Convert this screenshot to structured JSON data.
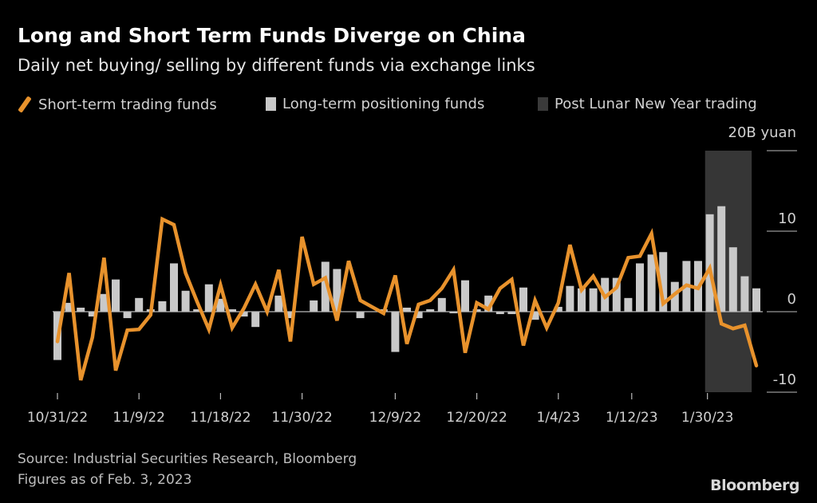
{
  "header": {
    "title": "Long and Short Term Funds Diverge on China",
    "subtitle": "Daily net buying/ selling by different funds via exchange links"
  },
  "legend": {
    "short_term": "Short-term trading funds",
    "long_term": "Long-term positioning funds",
    "post_lny": "Post Lunar New Year trading"
  },
  "footer": {
    "source": "Source: Industrial Securities Research, Bloomberg",
    "as_of": "Figures as of Feb. 3, 2023",
    "logo": "Bloomberg"
  },
  "colors": {
    "line": "#e8922c",
    "bar": "#c9c9c9",
    "shade": "#363636",
    "background": "#000000"
  },
  "chart_data": {
    "type": "bar+line",
    "title": "Long and Short Term Funds Diverge on China",
    "ylabel": "20B yuan",
    "unit_label": "20B yuan",
    "ylim": [
      -10,
      20
    ],
    "yticks": [
      {
        "value": 10,
        "label": "10"
      },
      {
        "value": 0,
        "label": "0"
      },
      {
        "value": -10,
        "label": "-10"
      }
    ],
    "xticks": [
      {
        "index": 0,
        "label": "10/31/22"
      },
      {
        "index": 7,
        "label": "11/9/22"
      },
      {
        "index": 14,
        "label": "11/18/22"
      },
      {
        "index": 21,
        "label": "11/30/22"
      },
      {
        "index": 29,
        "label": "12/9/22"
      },
      {
        "index": 36,
        "label": "12/20/22"
      },
      {
        "index": 43,
        "label": "1/4/23"
      },
      {
        "index": 49.3,
        "label": "1/12/23"
      },
      {
        "index": 55.8,
        "label": "1/30/23"
      }
    ],
    "shaded_range": {
      "from_index": 55.6,
      "to_index": 59.6,
      "label": "Post Lunar New Year trading"
    },
    "series": [
      {
        "name": "Long-term positioning funds",
        "kind": "bar",
        "values": [
          -6,
          1.1,
          0.5,
          -0.6,
          2.2,
          4,
          -0.8,
          1.7,
          0.3,
          1.3,
          6,
          2.6,
          0.3,
          3.4,
          1.6,
          0.3,
          -0.6,
          -1.9,
          0,
          2,
          -0.8,
          0,
          1.4,
          6.2,
          5.3,
          0,
          -0.8,
          0,
          0.3,
          -5,
          0.5,
          -0.8,
          0.3,
          1.7,
          -0.2,
          3.9,
          0.3,
          2,
          -0.3,
          -0.3,
          3,
          -1,
          0,
          0.6,
          3.2,
          2.9,
          2.9,
          4.2,
          4.2,
          1.7,
          6,
          7.1,
          7.4,
          3.7,
          6.3,
          6.3,
          12.1,
          13.1,
          8,
          4.4,
          2.9
        ]
      },
      {
        "name": "Short-term trading funds",
        "kind": "line",
        "values": [
          -3.7,
          4.8,
          -8.5,
          -3.2,
          6.7,
          -7.3,
          -2.3,
          -2.2,
          -0.4,
          11.5,
          10.8,
          4.8,
          1.2,
          -2.2,
          3.3,
          -2,
          0.4,
          3.4,
          0,
          5.2,
          -3.7,
          9.3,
          3.4,
          4.2,
          -1.1,
          6.3,
          1.4,
          0.6,
          -0.2,
          4.5,
          -4,
          0.9,
          1.4,
          2.9,
          5.2,
          -5.1,
          1.1,
          0.3,
          2.9,
          4,
          -4.2,
          1.4,
          -2,
          1.1,
          8.3,
          2.7,
          4.4,
          1.8,
          3,
          6.7,
          6.9,
          9.7,
          1,
          2.2,
          3.3,
          2.9,
          5.4,
          -1.5,
          -2.1,
          -1.7,
          -6.7
        ]
      }
    ],
    "grid": false,
    "legend_position": "top"
  }
}
